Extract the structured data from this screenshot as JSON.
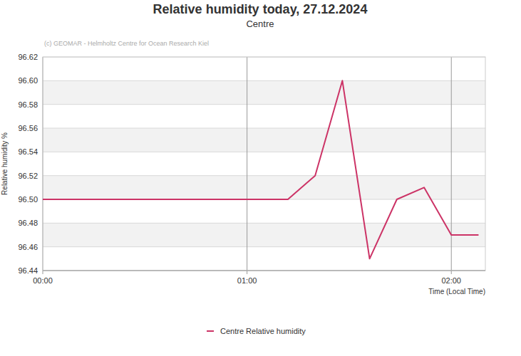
{
  "chart_data": {
    "type": "line",
    "title": "Relative humidity today, 27.12.2024",
    "subtitle": "Centre",
    "annotations": [
      "(c) GEOMAR - Helmholtz Centre for Ocean Research Kiel"
    ],
    "x_label": "Time (Local Time)",
    "y_label": "Relative humidity %",
    "x": [
      0,
      8,
      16,
      24,
      32,
      40,
      48,
      56,
      64,
      72,
      80,
      88,
      96,
      104,
      112,
      120,
      128
    ],
    "series": [
      {
        "name": "Centre Relative humidity",
        "color": "#cc3366",
        "values": [
          96.5,
          96.5,
          96.5,
          96.5,
          96.5,
          96.5,
          96.5,
          96.5,
          96.5,
          96.5,
          96.52,
          96.6,
          96.45,
          96.5,
          96.51,
          96.47,
          96.47
        ]
      }
    ],
    "xlim": [
      0,
      130
    ],
    "xticks": [
      {
        "value": 0,
        "label": "00:00"
      },
      {
        "value": 60,
        "label": "01:00"
      },
      {
        "value": 120,
        "label": "02:00"
      }
    ],
    "ylim": [
      96.44,
      96.62
    ],
    "yticks": [
      96.44,
      96.46,
      96.48,
      {
        "value": 96.5,
        "label": "96.50"
      },
      96.52,
      96.54,
      96.56,
      96.58,
      {
        "value": 96.6,
        "label": "96.60"
      },
      96.62
    ],
    "grid": true,
    "legend": "bottom"
  }
}
